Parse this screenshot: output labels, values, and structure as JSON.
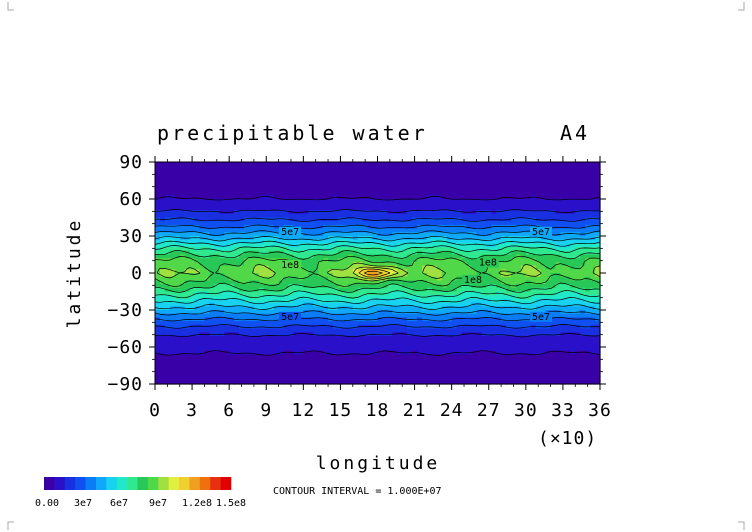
{
  "chart_data": {
    "type": "heatmap",
    "title": "precipitable water",
    "panel_label": "A4",
    "xlabel": "longitude",
    "ylabel": "latitude",
    "x_multiplier_label": "(×10)",
    "x_ticks": [
      "0",
      "3",
      "6",
      "9",
      "12",
      "15",
      "18",
      "21",
      "24",
      "27",
      "30",
      "33",
      "36"
    ],
    "y_ticks": [
      "90",
      "60",
      "30",
      "0",
      "−30",
      "−60",
      "−90"
    ],
    "xlim": [
      0,
      36
    ],
    "ylim": [
      -90,
      90
    ],
    "contour_interval_text": "CONTOUR INTERVAL = 1.000E+07",
    "colorbar": {
      "colors": [
        "#3a00a8",
        "#2a10c8",
        "#1830e0",
        "#1050f0",
        "#0a7cf5",
        "#10a8f8",
        "#18d2f0",
        "#20e8c8",
        "#30e890",
        "#28c858",
        "#50d848",
        "#a0e040",
        "#e0f040",
        "#f0d030",
        "#f0a020",
        "#f07010",
        "#e83010",
        "#e00000"
      ],
      "tick_labels": [
        "0.00",
        "3e7",
        "6e7",
        "9e7",
        "1.2e8",
        "1.5e8"
      ]
    },
    "lat_profile": [
      {
        "lat": 90,
        "value": 3000000.0
      },
      {
        "lat": 75,
        "value": 5000000.0
      },
      {
        "lat": 60,
        "value": 10000000.0
      },
      {
        "lat": 50,
        "value": 20000000.0
      },
      {
        "lat": 40,
        "value": 35000000.0
      },
      {
        "lat": 30,
        "value": 55000000.0
      },
      {
        "lat": 20,
        "value": 80000000.0
      },
      {
        "lat": 10,
        "value": 100000000.0
      },
      {
        "lat": 0,
        "value": 108000000.0
      },
      {
        "lat": -10,
        "value": 95000000.0
      },
      {
        "lat": -20,
        "value": 75000000.0
      },
      {
        "lat": -30,
        "value": 55000000.0
      },
      {
        "lat": -40,
        "value": 35000000.0
      },
      {
        "lat": -50,
        "value": 20000000.0
      },
      {
        "lat": -60,
        "value": 12000000.0
      },
      {
        "lat": -75,
        "value": 6000000.0
      },
      {
        "lat": -90,
        "value": 3000000.0
      }
    ],
    "hotspot": {
      "lon": 18,
      "lat": 0,
      "value": 150000000.0
    },
    "contour_labels": [
      {
        "text": "5e7",
        "lon": 10.2,
        "lat": 31
      },
      {
        "text": "5e7",
        "lon": 30.5,
        "lat": 31
      },
      {
        "text": "1e8",
        "lon": 10.2,
        "lat": 4
      },
      {
        "text": "1e8",
        "lon": 26.2,
        "lat": 6
      },
      {
        "text": "1e8",
        "lon": 25.0,
        "lat": -8
      },
      {
        "text": "5e7",
        "lon": 10.2,
        "lat": -38
      },
      {
        "text": "5e7",
        "lon": 30.5,
        "lat": -38
      }
    ]
  }
}
